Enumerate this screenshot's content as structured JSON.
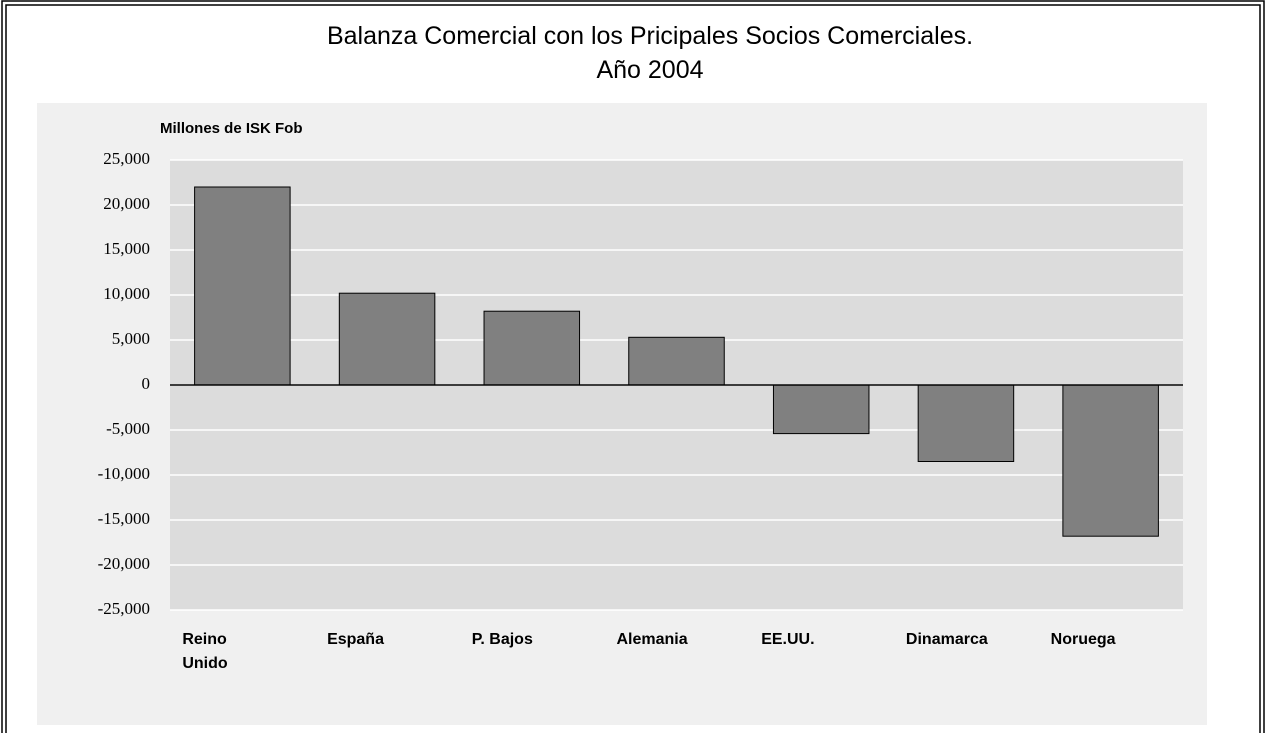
{
  "chart_data": {
    "type": "bar",
    "title": "Balanza Comercial con los Pricipales Socios Comerciales.",
    "subtitle": "Año 2004",
    "y_label": "Millones de ISK Fob",
    "categories": [
      "Reino Unido",
      "España",
      "P. Bajos",
      "Alemania",
      "EE.UU.",
      "Dinamarca",
      "Noruega"
    ],
    "values": [
      22000,
      10200,
      8200,
      5300,
      -5400,
      -8500,
      -16800
    ],
    "color": "#808080",
    "ylim": [
      -25000,
      25000
    ],
    "yticks": [
      {
        "value": -25000,
        "label": "-25,000"
      },
      {
        "value": -20000,
        "label": "-20,000"
      },
      {
        "value": -15000,
        "label": "-15,000"
      },
      {
        "value": -10000,
        "label": "-10,000"
      },
      {
        "value": -5000,
        "label": "-5,000"
      },
      0,
      {
        "value": 5000,
        "label": "5,000"
      },
      {
        "value": 10000,
        "label": "10,000"
      },
      {
        "value": 15000,
        "label": "15,000"
      },
      {
        "value": 20000,
        "label": "20,000"
      },
      {
        "value": 25000,
        "label": "25,000"
      }
    ],
    "grid": true
  }
}
